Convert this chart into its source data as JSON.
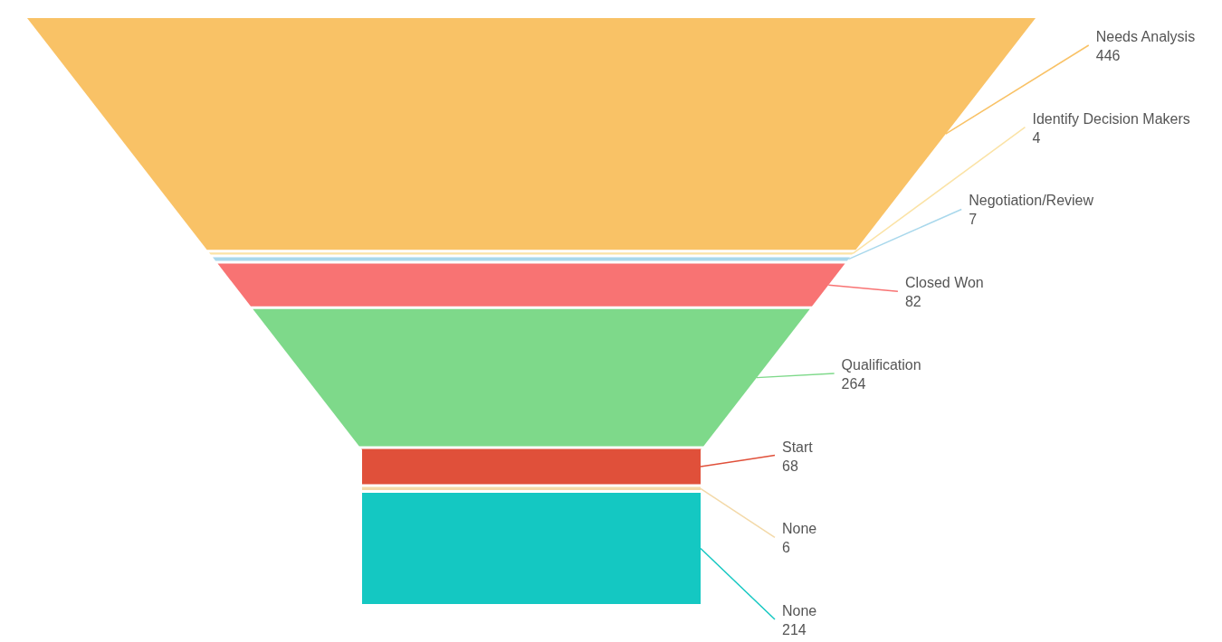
{
  "chart_data": {
    "type": "other",
    "categories": [
      "Needs Analysis",
      "Identify Decision Makers",
      "Negotiation/Review",
      "Closed Won",
      "Qualification",
      "Start",
      "None",
      "None"
    ],
    "values": [
      446,
      4,
      7,
      82,
      264,
      68,
      6,
      214
    ],
    "colors": [
      "#f9c266",
      "#fbe3a6",
      "#a9d8ec",
      "#f87373",
      "#7ed98a",
      "#e0503a",
      "#f3d9a8",
      "#14c8c2"
    ],
    "data_labels": true
  }
}
